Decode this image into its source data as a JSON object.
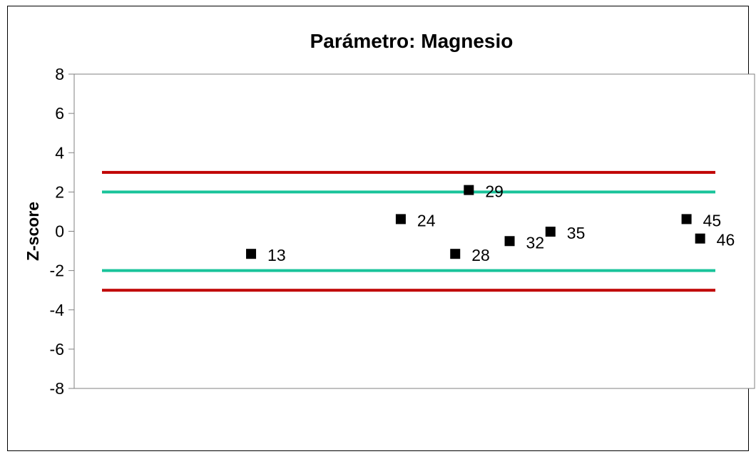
{
  "chart_data": {
    "type": "scatter",
    "title": "Parámetro: Magnesio",
    "xlabel": "",
    "ylabel": "Z-score",
    "ylim": [
      -8,
      8
    ],
    "yticks": [
      8,
      6,
      4,
      2,
      0,
      -2,
      -4,
      -6,
      -8
    ],
    "grid": false,
    "xlim": [
      0,
      50
    ],
    "limit_lines": [
      {
        "y": 3,
        "color": "#c00000"
      },
      {
        "y": 2,
        "color": "#19c39a"
      },
      {
        "y": -2,
        "color": "#19c39a"
      },
      {
        "y": -3,
        "color": "#c00000"
      }
    ],
    "points": [
      {
        "label": "13",
        "x": 13,
        "y": -1.15
      },
      {
        "label": "24",
        "x": 24,
        "y": 0.62
      },
      {
        "label": "28",
        "x": 28,
        "y": -1.15
      },
      {
        "label": "29",
        "x": 29,
        "y": 2.1
      },
      {
        "label": "32",
        "x": 32,
        "y": -0.5
      },
      {
        "label": "35",
        "x": 35,
        "y": -0.02
      },
      {
        "label": "45",
        "x": 45,
        "y": 0.62
      },
      {
        "label": "46",
        "x": 46,
        "y": -0.37
      }
    ],
    "marker_color": "#000000"
  }
}
